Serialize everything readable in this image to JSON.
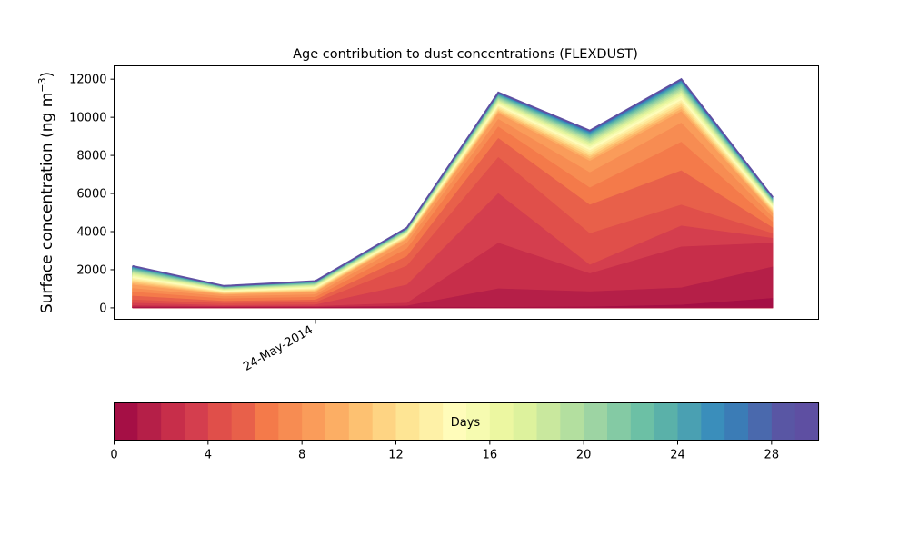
{
  "chart_data": {
    "type": "area",
    "stacked": true,
    "title": "Age contribution to dust concentrations (FLEXDUST)",
    "ylabel": "Surface concentration (ng m",
    "ylabel_superscript": "−3",
    "ylabel_suffix": ")",
    "xlabel": "",
    "ylim": [
      -600,
      12700
    ],
    "yticks": [
      0,
      2000,
      4000,
      6000,
      8000,
      10000,
      12000
    ],
    "ytick_labels": [
      "0",
      "2000",
      "4000",
      "6000",
      "8000",
      "10000",
      "12000"
    ],
    "x_count": 8,
    "x_index_range": [
      -0.2,
      7.5
    ],
    "xticks": [
      {
        "index": 2,
        "label": "24-May-2014"
      }
    ],
    "totals": [
      2200,
      1150,
      1400,
      4200,
      11300,
      9300,
      12000,
      5800
    ],
    "cumulative_boundaries_layers_0_to_8": [
      [
        20,
        20,
        20,
        40,
        30,
        50,
        150,
        500
      ],
      [
        60,
        40,
        40,
        100,
        1000,
        850,
        1050,
        2150
      ],
      [
        120,
        70,
        80,
        250,
        3400,
        1800,
        3200,
        3400
      ],
      [
        250,
        130,
        160,
        1200,
        6000,
        2250,
        4300,
        3650
      ],
      [
        420,
        230,
        280,
        2200,
        7900,
        3900,
        5400,
        3900
      ],
      [
        620,
        350,
        410,
        2700,
        8900,
        5400,
        7200,
        4200
      ],
      [
        830,
        480,
        560,
        3100,
        9500,
        6300,
        8700,
        4500
      ],
      [
        1020,
        590,
        690,
        3400,
        9900,
        7100,
        9700,
        4750
      ],
      [
        1200,
        680,
        810,
        3600,
        10200,
        7700,
        10300,
        4950
      ]
    ],
    "colorbar": {
      "label": "Days",
      "min": 0,
      "max": 30,
      "ticks": [
        0,
        4,
        8,
        12,
        16,
        20,
        24,
        28
      ],
      "tick_labels": [
        "0",
        "4",
        "8",
        "12",
        "16",
        "20",
        "24",
        "28"
      ],
      "colormap": "Spectral",
      "colors": [
        "#a50f45",
        "#b51f48",
        "#c72e4a",
        "#d43e4e",
        "#e04f4a",
        "#e8604a",
        "#f47a4a",
        "#f78c52",
        "#fa9c5a",
        "#fcae64",
        "#fdc171",
        "#fed483",
        "#fee594",
        "#fef1a7",
        "#fffcba",
        "#f6fbb0",
        "#ecf7a1",
        "#ddf29d",
        "#c9e89e",
        "#b3df9f",
        "#9dd4a3",
        "#84caa4",
        "#6cc0a5",
        "#5ab1a9",
        "#4aa0b2",
        "#3a8ebb",
        "#3b7cb6",
        "#4a69ad",
        "#5956a4",
        "#5e4fa2"
      ]
    }
  }
}
